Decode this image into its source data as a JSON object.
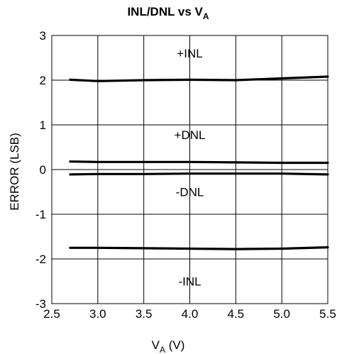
{
  "chart_data": {
    "type": "line",
    "title_main": "INL/DNL vs V",
    "title_sub": "A",
    "xlabel_main": "V",
    "xlabel_sub": "A",
    "xlabel_unit": " (V)",
    "ylabel": "ERROR (LSB)",
    "xlim": [
      2.5,
      5.5
    ],
    "ylim": [
      -3,
      3
    ],
    "xticks": [
      "2.5",
      "3.0",
      "3.5",
      "4.0",
      "4.5",
      "5.0",
      "5.5"
    ],
    "yticks": [
      "3",
      "2",
      "1",
      "0",
      "-1",
      "-2",
      "-3"
    ],
    "grid": true,
    "series": [
      {
        "name": "+INL",
        "x": [
          2.7,
          3.0,
          3.5,
          4.0,
          4.5,
          5.0,
          5.5
        ],
        "y": [
          2.01,
          1.98,
          2.0,
          2.01,
          2.0,
          2.04,
          2.08
        ]
      },
      {
        "name": "+DNL",
        "x": [
          2.7,
          3.0,
          3.5,
          4.0,
          4.5,
          5.0,
          5.5
        ],
        "y": [
          0.18,
          0.17,
          0.17,
          0.17,
          0.16,
          0.15,
          0.15
        ]
      },
      {
        "name": "-DNL",
        "x": [
          2.7,
          3.0,
          3.5,
          4.0,
          4.5,
          5.0,
          5.5
        ],
        "y": [
          -0.11,
          -0.1,
          -0.1,
          -0.09,
          -0.09,
          -0.09,
          -0.11
        ]
      },
      {
        "name": "-INL",
        "x": [
          2.7,
          3.0,
          3.5,
          4.0,
          4.5,
          5.0,
          5.5
        ],
        "y": [
          -1.75,
          -1.75,
          -1.76,
          -1.77,
          -1.78,
          -1.77,
          -1.74
        ]
      }
    ],
    "annotations": [
      {
        "text": "+INL",
        "x": 4.0,
        "y": 2.6
      },
      {
        "text": "+DNL",
        "x": 4.0,
        "y": 0.78
      },
      {
        "text": "-DNL",
        "x": 4.0,
        "y": -0.5
      },
      {
        "text": "-INL",
        "x": 4.0,
        "y": -2.5
      }
    ]
  }
}
